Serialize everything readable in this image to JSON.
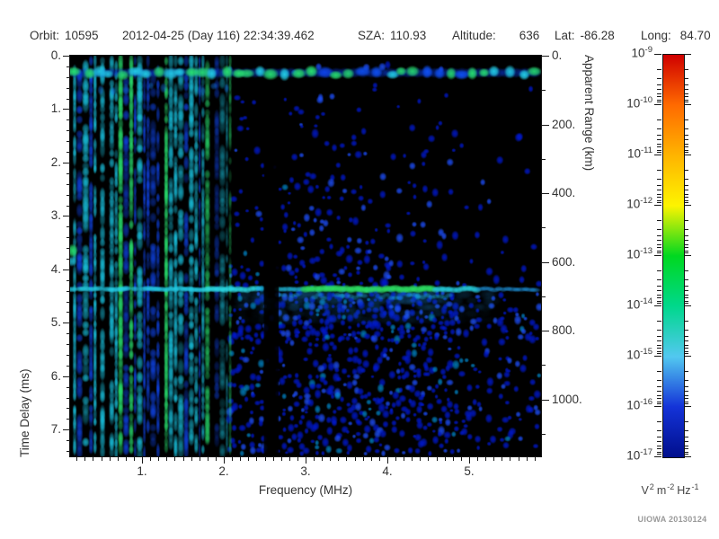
{
  "header": {
    "fields": [
      {
        "label": "Orbit:",
        "value": "10595"
      },
      {
        "label": "",
        "value": "2012-04-25 (Day 116) 22:34:39.462"
      },
      {
        "label": "SZA:",
        "value": "110.93"
      },
      {
        "label": "Altitude:",
        "value": "636"
      },
      {
        "label": "Lat:",
        "value": "-86.28"
      },
      {
        "label": "Long:",
        "value": "84.70"
      }
    ]
  },
  "footer": {
    "credit": "UIOWA 20130124"
  },
  "chart_data": {
    "type": "heatmap",
    "xlabel": "Frequency (MHz)",
    "ylabel_left": "Time Delay (ms)",
    "ylabel_right": "Apparent Range (km)",
    "x_axis": {
      "range_mhz": [
        0.12,
        5.88
      ],
      "major_ticks": [
        {
          "v": 1,
          "label": "1."
        },
        {
          "v": 2,
          "label": "2."
        },
        {
          "v": 3,
          "label": "3."
        },
        {
          "v": 4,
          "label": "4."
        },
        {
          "v": 5,
          "label": "5."
        }
      ],
      "minor_step_mhz": 0.1
    },
    "y_axis": {
      "range_ms": [
        0,
        7.5
      ],
      "major_ticks": [
        {
          "v": 0,
          "label": "0."
        },
        {
          "v": 1,
          "label": "1."
        },
        {
          "v": 2,
          "label": "2."
        },
        {
          "v": 3,
          "label": "3."
        },
        {
          "v": 4,
          "label": "4."
        },
        {
          "v": 5,
          "label": "5."
        },
        {
          "v": 6,
          "label": "6."
        },
        {
          "v": 7,
          "label": "7."
        }
      ],
      "minor_step_ms": 0.2
    },
    "right_axis": {
      "range_km": [
        0,
        1166
      ],
      "major_ticks": [
        {
          "v": 0,
          "label": "0."
        },
        {
          "v": 200,
          "label": "200."
        },
        {
          "v": 400,
          "label": "400."
        },
        {
          "v": 600,
          "label": "600."
        },
        {
          "v": 800,
          "label": "800."
        },
        {
          "v": 1000,
          "label": "1000."
        }
      ],
      "minor_ticks_km": [
        100,
        300,
        500,
        700,
        900,
        1100
      ]
    },
    "colorbar": {
      "base": "10",
      "tick_exponents": [
        "-9",
        "-10",
        "-11",
        "-12",
        "-13",
        "-14",
        "-15",
        "-16",
        "-17"
      ],
      "gradient": [
        "#cf0000",
        "#ff6a00",
        "#ffb400",
        "#fdf400",
        "#00d820",
        "#00d88c",
        "#52c8f0",
        "#1433d8",
        "#000e8c"
      ],
      "unit_parts": [
        {
          "base": "V",
          "sup": "2"
        },
        {
          "base": "m",
          "sup": "-2"
        },
        {
          "base": "Hz",
          "sup": "-1"
        }
      ]
    },
    "features": [
      "Bright green/cyan echo band near 0.3 ms time delay spanning all frequencies",
      "Dense vertical interference striping (green/cyan/blue) below ~2.1 MHz at all delays",
      "Ground reflection trace near 4.4 ms (~650 km apparent range), brightest green between 3 and 4.5 MHz",
      "Diffuse blue noise speckle whose density increases with time delay, sparser above 4.9 MHz",
      "Quiet black vertical gap near 2.5 MHz",
      "Bright green patch at lowest frequency near 3.65 ms"
    ],
    "render": {
      "seed": 20130124,
      "band_ms": 0.32,
      "trace_ms": 4.37,
      "stripe_max_mhz": 2.08,
      "gap_mhz": [
        2.49,
        2.67
      ],
      "green": "40,225,110",
      "stripe_cyan": "25,200,230",
      "stripe_blue": "15,70,240",
      "noise_blue": "0,25,210",
      "noise_light": "30,80,255",
      "noise_cyan": "0,150,225",
      "trace_green": "45,225,100",
      "trace_cyan": "35,205,230"
    }
  }
}
